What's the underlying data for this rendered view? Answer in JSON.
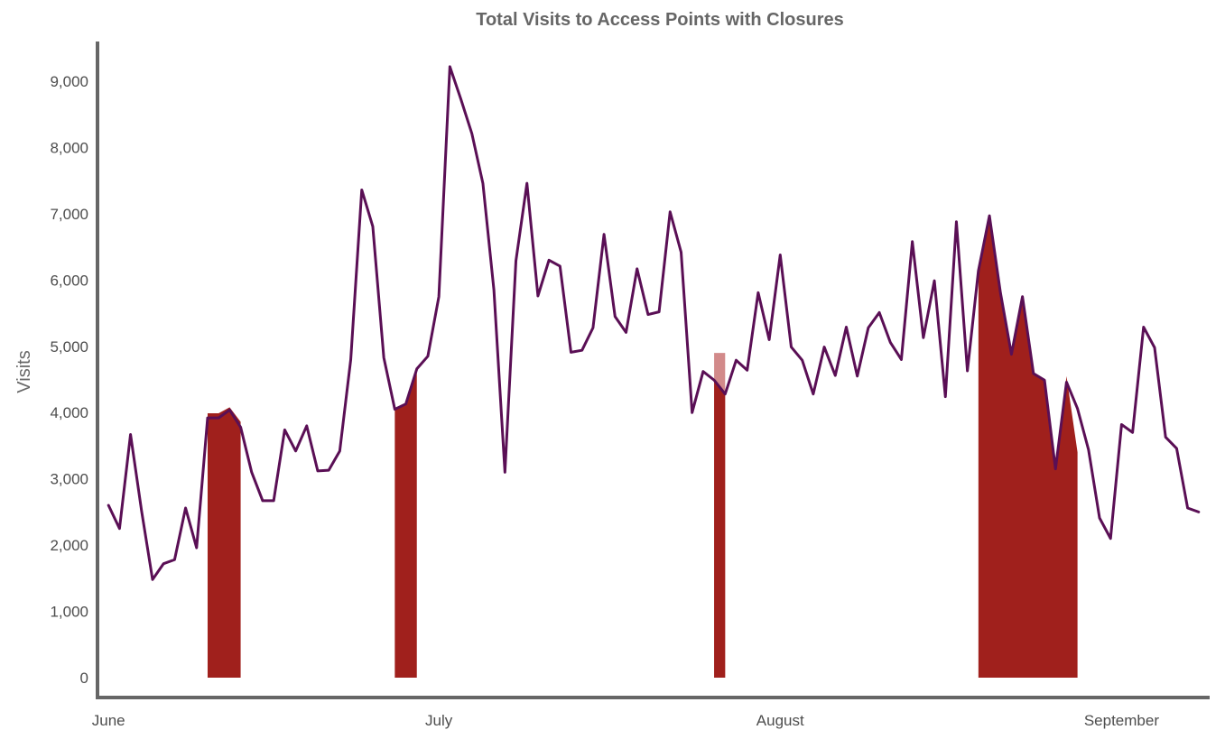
{
  "chart_data": {
    "type": "line",
    "title": "Total Visits to Access Points with Closures",
    "xlabel": "",
    "ylabel": "Visits",
    "ylim": [
      -300,
      9600
    ],
    "xlim": [
      "2020-05-31",
      "2020-09-09"
    ],
    "yticks": [
      0,
      1000,
      2000,
      3000,
      4000,
      5000,
      6000,
      7000,
      8000,
      9000
    ],
    "ytick_labels": [
      "0",
      "1,000",
      "2,000",
      "3,000",
      "4,000",
      "5,000",
      "6,000",
      "7,000",
      "8,000",
      "9,000"
    ],
    "xticks": [
      "2020-06-01",
      "2020-07-01",
      "2020-08-01",
      "2020-09-01"
    ],
    "xtick_labels": [
      "June",
      "July",
      "August",
      "September"
    ],
    "grid": false,
    "colors": {
      "line": "#5a0f55",
      "closure": "#a0201c",
      "closure_light": "#d28a8a",
      "axis": "#666666"
    },
    "series": [
      {
        "values": [
          [
            "2020-06-01",
            2600
          ],
          [
            "2020-06-02",
            2250
          ],
          [
            "2020-06-03",
            3670
          ],
          [
            "2020-06-04",
            2520
          ],
          [
            "2020-06-05",
            1480
          ],
          [
            "2020-06-06",
            1720
          ],
          [
            "2020-06-07",
            1780
          ],
          [
            "2020-06-08",
            2560
          ],
          [
            "2020-06-09",
            1960
          ],
          [
            "2020-06-10",
            3920
          ],
          [
            "2020-06-11",
            3920
          ],
          [
            "2020-06-12",
            4040
          ],
          [
            "2020-06-13",
            3780
          ],
          [
            "2020-06-14",
            3100
          ],
          [
            "2020-06-15",
            2670
          ],
          [
            "2020-06-16",
            2670
          ],
          [
            "2020-06-17",
            3740
          ],
          [
            "2020-06-18",
            3420
          ],
          [
            "2020-06-19",
            3800
          ],
          [
            "2020-06-20",
            3120
          ],
          [
            "2020-06-21",
            3130
          ],
          [
            "2020-06-22",
            3420
          ],
          [
            "2020-06-23",
            4800
          ],
          [
            "2020-06-24",
            7360
          ],
          [
            "2020-06-25",
            6810
          ],
          [
            "2020-06-26",
            4830
          ],
          [
            "2020-06-27",
            4050
          ],
          [
            "2020-06-28",
            4130
          ],
          [
            "2020-06-29",
            4660
          ],
          [
            "2020-06-30",
            4850
          ],
          [
            "2020-07-01",
            5750
          ],
          [
            "2020-07-02",
            9220
          ],
          [
            "2020-07-03",
            8730
          ],
          [
            "2020-07-04",
            8210
          ],
          [
            "2020-07-05",
            7460
          ],
          [
            "2020-07-06",
            5850
          ],
          [
            "2020-07-07",
            3100
          ],
          [
            "2020-07-08",
            6290
          ],
          [
            "2020-07-09",
            7460
          ],
          [
            "2020-07-10",
            5760
          ],
          [
            "2020-07-11",
            6300
          ],
          [
            "2020-07-12",
            6210
          ],
          [
            "2020-07-13",
            4910
          ],
          [
            "2020-07-14",
            4940
          ],
          [
            "2020-07-15",
            5280
          ],
          [
            "2020-07-16",
            6690
          ],
          [
            "2020-07-17",
            5450
          ],
          [
            "2020-07-18",
            5210
          ],
          [
            "2020-07-19",
            6170
          ],
          [
            "2020-07-20",
            5480
          ],
          [
            "2020-07-21",
            5520
          ],
          [
            "2020-07-22",
            7030
          ],
          [
            "2020-07-23",
            6420
          ],
          [
            "2020-07-24",
            4000
          ],
          [
            "2020-07-25",
            4620
          ],
          [
            "2020-07-26",
            4490
          ],
          [
            "2020-07-27",
            4280
          ],
          [
            "2020-07-28",
            4790
          ],
          [
            "2020-07-29",
            4640
          ],
          [
            "2020-07-30",
            5810
          ],
          [
            "2020-07-31",
            5100
          ],
          [
            "2020-08-01",
            6380
          ],
          [
            "2020-08-02",
            4990
          ],
          [
            "2020-08-03",
            4790
          ],
          [
            "2020-08-04",
            4280
          ],
          [
            "2020-08-05",
            4990
          ],
          [
            "2020-08-06",
            4560
          ],
          [
            "2020-08-07",
            5290
          ],
          [
            "2020-08-08",
            4550
          ],
          [
            "2020-08-09",
            5280
          ],
          [
            "2020-08-10",
            5510
          ],
          [
            "2020-08-11",
            5060
          ],
          [
            "2020-08-12",
            4800
          ],
          [
            "2020-08-13",
            6580
          ],
          [
            "2020-08-14",
            5130
          ],
          [
            "2020-08-15",
            5990
          ],
          [
            "2020-08-16",
            4240
          ],
          [
            "2020-08-17",
            6880
          ],
          [
            "2020-08-18",
            4630
          ],
          [
            "2020-08-19",
            6140
          ],
          [
            "2020-08-20",
            6970
          ],
          [
            "2020-08-21",
            5810
          ],
          [
            "2020-08-22",
            4880
          ],
          [
            "2020-08-23",
            5750
          ],
          [
            "2020-08-24",
            4590
          ],
          [
            "2020-08-25",
            4490
          ],
          [
            "2020-08-26",
            3150
          ],
          [
            "2020-08-27",
            4460
          ],
          [
            "2020-08-28",
            4060
          ],
          [
            "2020-08-29",
            3440
          ],
          [
            "2020-08-30",
            2410
          ],
          [
            "2020-08-31",
            2100
          ],
          [
            "2020-09-01",
            3820
          ],
          [
            "2020-09-02",
            3700
          ],
          [
            "2020-09-03",
            5290
          ],
          [
            "2020-09-04",
            4980
          ],
          [
            "2020-09-05",
            3630
          ],
          [
            "2020-09-06",
            3460
          ],
          [
            "2020-09-07",
            2560
          ],
          [
            "2020-09-08",
            2500
          ]
        ]
      }
    ],
    "closure_areas": [
      {
        "start": "2020-06-10",
        "end": "2020-06-13",
        "top": [
          [
            "2020-06-10",
            3990
          ],
          [
            "2020-06-11",
            3990
          ],
          [
            "2020-06-12",
            4080
          ],
          [
            "2020-06-13",
            3860
          ]
        ]
      },
      {
        "start": "2020-06-27",
        "end": "2020-06-29",
        "top": [
          [
            "2020-06-27",
            4050
          ],
          [
            "2020-06-28",
            4130
          ],
          [
            "2020-06-29",
            4660
          ]
        ]
      },
      {
        "start": "2020-07-26",
        "end": "2020-07-27",
        "top": [
          [
            "2020-07-26",
            4900
          ],
          [
            "2020-07-27",
            4900
          ]
        ]
      },
      {
        "start": "2020-08-19",
        "end": "2020-08-28",
        "top": [
          [
            "2020-08-19",
            6140
          ],
          [
            "2020-08-20",
            6970
          ],
          [
            "2020-08-21",
            5810
          ],
          [
            "2020-08-22",
            4880
          ],
          [
            "2020-08-23",
            5750
          ],
          [
            "2020-08-24",
            4590
          ],
          [
            "2020-08-25",
            4490
          ],
          [
            "2020-08-26",
            3150
          ],
          [
            "2020-08-27",
            4550
          ],
          [
            "2020-08-28",
            3400
          ]
        ]
      }
    ]
  }
}
